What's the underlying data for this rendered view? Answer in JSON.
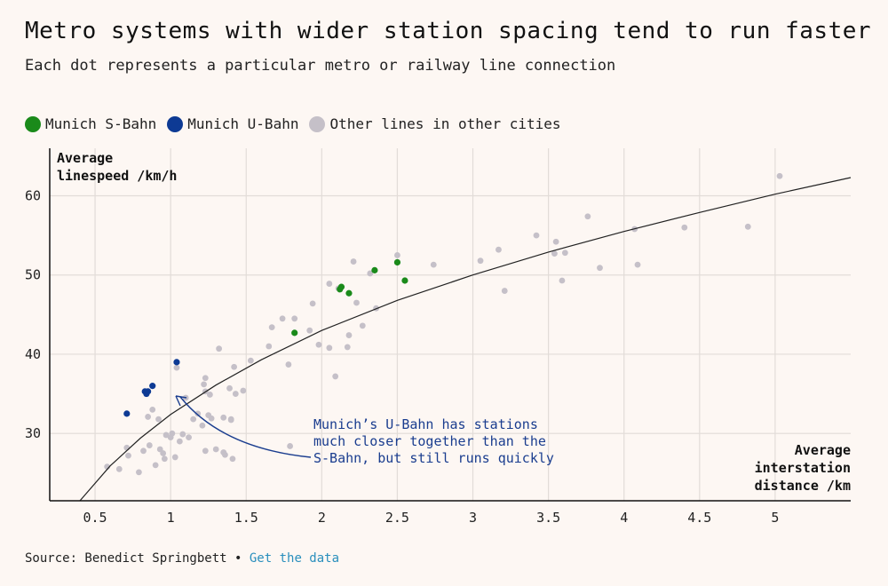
{
  "title": "Metro systems with wider station spacing tend to run faster",
  "subtitle": "Each dot represents a particular metro or railway line connection",
  "legend": [
    {
      "label": "Munich S-Bahn",
      "color": "#1a8a1a"
    },
    {
      "label": "Munich U-Bahn",
      "color": "#0d3a94"
    },
    {
      "label": "Other lines in other cities",
      "color": "#c5c0c8"
    }
  ],
  "annotation": "Munich’s U-Bahn has stations\nmuch closer together than the\nS-Bahn, but still runs quickly",
  "source": {
    "prefix": "Source: Benedict Springbett •",
    "link": "Get the data"
  },
  "chart_data": {
    "type": "scatter",
    "title": "Metro systems with wider station spacing tend to run faster",
    "subtitle": "Each dot represents a particular metro or railway line connection",
    "xlabel": "Average interstation distance /km",
    "ylabel": "Average linespeed /km/h",
    "xlim": [
      0.2,
      5.5
    ],
    "ylim": [
      21.5,
      66
    ],
    "xticks": [
      0.5,
      1,
      1.5,
      2,
      2.5,
      3,
      3.5,
      4,
      4.5,
      5
    ],
    "yticks": [
      30,
      40,
      50,
      60
    ],
    "grid": true,
    "legend_position": "top-left",
    "trendline": {
      "x": [
        0.4,
        0.6,
        0.8,
        1.0,
        1.3,
        1.6,
        2.0,
        2.5,
        3.0,
        3.5,
        4.0,
        4.5,
        5.0,
        5.5
      ],
      "y": [
        21.5,
        25.9,
        29.4,
        32.4,
        36.1,
        39.3,
        43.0,
        46.8,
        50.0,
        52.9,
        55.5,
        57.9,
        60.2,
        62.3
      ]
    },
    "series": [
      {
        "name": "Munich S-Bahn",
        "color": "#1a8a1a",
        "points": [
          [
            1.82,
            42.7
          ],
          [
            2.12,
            48.2
          ],
          [
            2.13,
            48.5
          ],
          [
            2.18,
            47.7
          ],
          [
            2.35,
            50.6
          ],
          [
            2.5,
            51.6
          ],
          [
            2.55,
            49.3
          ]
        ]
      },
      {
        "name": "Munich U-Bahn",
        "color": "#0d3a94",
        "points": [
          [
            0.71,
            32.5
          ],
          [
            0.83,
            35.3
          ],
          [
            0.84,
            35.0
          ],
          [
            0.85,
            35.3
          ],
          [
            0.88,
            36.0
          ],
          [
            1.04,
            39.0
          ]
        ]
      },
      {
        "name": "Other lines in other cities",
        "color": "#c5c0c8",
        "points": [
          [
            0.58,
            25.8
          ],
          [
            0.66,
            25.5
          ],
          [
            0.71,
            28.2
          ],
          [
            0.72,
            27.2
          ],
          [
            0.79,
            25.1
          ],
          [
            0.82,
            27.8
          ],
          [
            0.85,
            32.1
          ],
          [
            0.86,
            28.5
          ],
          [
            0.88,
            33.0
          ],
          [
            0.9,
            26.0
          ],
          [
            0.92,
            31.8
          ],
          [
            0.93,
            28.0
          ],
          [
            0.95,
            27.5
          ],
          [
            0.96,
            26.8
          ],
          [
            0.97,
            29.8
          ],
          [
            1.0,
            29.5
          ],
          [
            1.01,
            30.0
          ],
          [
            1.03,
            27.0
          ],
          [
            1.04,
            38.3
          ],
          [
            1.06,
            29.0
          ],
          [
            1.08,
            29.9
          ],
          [
            1.1,
            34.5
          ],
          [
            1.12,
            29.5
          ],
          [
            1.15,
            31.8
          ],
          [
            1.18,
            32.5
          ],
          [
            1.21,
            31.0
          ],
          [
            1.22,
            36.2
          ],
          [
            1.23,
            35.3
          ],
          [
            1.23,
            37.0
          ],
          [
            1.23,
            27.8
          ],
          [
            1.25,
            32.3
          ],
          [
            1.26,
            34.9
          ],
          [
            1.27,
            31.9
          ],
          [
            1.3,
            28.0
          ],
          [
            1.32,
            40.7
          ],
          [
            1.35,
            32.0
          ],
          [
            1.35,
            27.6
          ],
          [
            1.36,
            27.3
          ],
          [
            1.39,
            35.7
          ],
          [
            1.4,
            31.8
          ],
          [
            1.4,
            31.7
          ],
          [
            1.41,
            26.8
          ],
          [
            1.42,
            38.4
          ],
          [
            1.43,
            35.0
          ],
          [
            1.48,
            35.4
          ],
          [
            1.53,
            39.2
          ],
          [
            1.65,
            41.0
          ],
          [
            1.67,
            43.4
          ],
          [
            1.74,
            44.5
          ],
          [
            1.78,
            38.7
          ],
          [
            1.79,
            28.4
          ],
          [
            1.82,
            44.5
          ],
          [
            1.92,
            43.0
          ],
          [
            1.94,
            46.4
          ],
          [
            1.98,
            41.2
          ],
          [
            2.05,
            48.9
          ],
          [
            2.05,
            40.8
          ],
          [
            2.09,
            37.2
          ],
          [
            2.11,
            48.3
          ],
          [
            2.17,
            40.9
          ],
          [
            2.18,
            42.4
          ],
          [
            2.21,
            51.7
          ],
          [
            2.23,
            46.5
          ],
          [
            2.27,
            43.6
          ],
          [
            2.32,
            50.2
          ],
          [
            2.36,
            45.8
          ],
          [
            2.5,
            52.5
          ],
          [
            2.74,
            51.3
          ],
          [
            3.05,
            51.8
          ],
          [
            3.17,
            53.2
          ],
          [
            3.21,
            48.0
          ],
          [
            3.42,
            55.0
          ],
          [
            3.54,
            52.7
          ],
          [
            3.55,
            54.2
          ],
          [
            3.59,
            49.3
          ],
          [
            3.61,
            52.8
          ],
          [
            3.76,
            57.4
          ],
          [
            3.84,
            50.9
          ],
          [
            4.07,
            55.8
          ],
          [
            4.09,
            51.3
          ],
          [
            4.4,
            56.0
          ],
          [
            4.82,
            56.1
          ],
          [
            5.03,
            62.5
          ]
        ]
      }
    ]
  }
}
